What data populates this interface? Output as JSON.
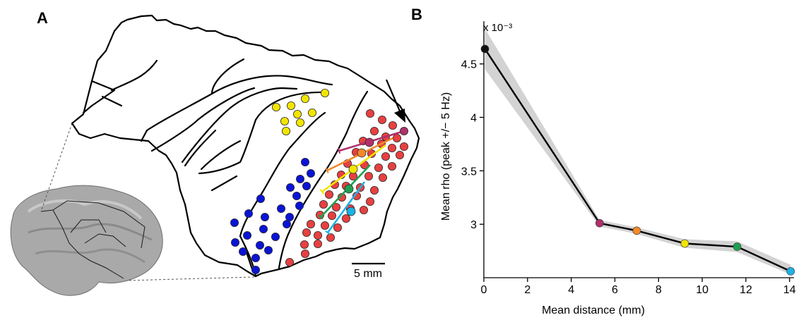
{
  "panels": {
    "a_label": "A",
    "b_label": "B"
  },
  "scale_bar_label": "5 mm",
  "colors": {
    "yellow_group": "#f2e500",
    "blue_group": "#0a14d6",
    "red_group": "#e84040",
    "line": "#000000",
    "band": "#d3d3d3",
    "brain": "#a9a9a9"
  },
  "chart_data": {
    "type": "line",
    "title": "",
    "xlabel": "Mean distance (mm)",
    "ylabel": "Mean rho (peak +/− 5 Hz)",
    "y_multiplier": "x 10⁻³",
    "xlim": [
      0,
      14.2
    ],
    "ylim": [
      2.5,
      4.9
    ],
    "x_ticks": [
      0,
      2,
      4,
      6,
      8,
      10,
      12,
      14
    ],
    "x_tick_labels": [
      "0",
      "2",
      "4",
      "6",
      "8",
      "10",
      "12",
      "14"
    ],
    "y_ticks": [
      3,
      3.5,
      4,
      4.5
    ],
    "y_tick_labels": [
      "3",
      "3.5",
      "4",
      "4.5"
    ],
    "grid": false,
    "series": [
      {
        "x": [
          0.05,
          5.3,
          7.0,
          9.2,
          11.6,
          14.05
        ],
        "y": [
          4.64,
          3.01,
          2.94,
          2.82,
          2.79,
          2.56
        ],
        "band_upper": [
          4.83,
          3.04,
          2.97,
          2.86,
          2.84,
          2.62
        ],
        "band_lower": [
          4.45,
          2.98,
          2.91,
          2.78,
          2.74,
          2.53
        ],
        "point_colors": [
          "#111111",
          "#b0306a",
          "#f28a2a",
          "#f2e500",
          "#1fa050",
          "#1eb2e6"
        ]
      }
    ]
  }
}
